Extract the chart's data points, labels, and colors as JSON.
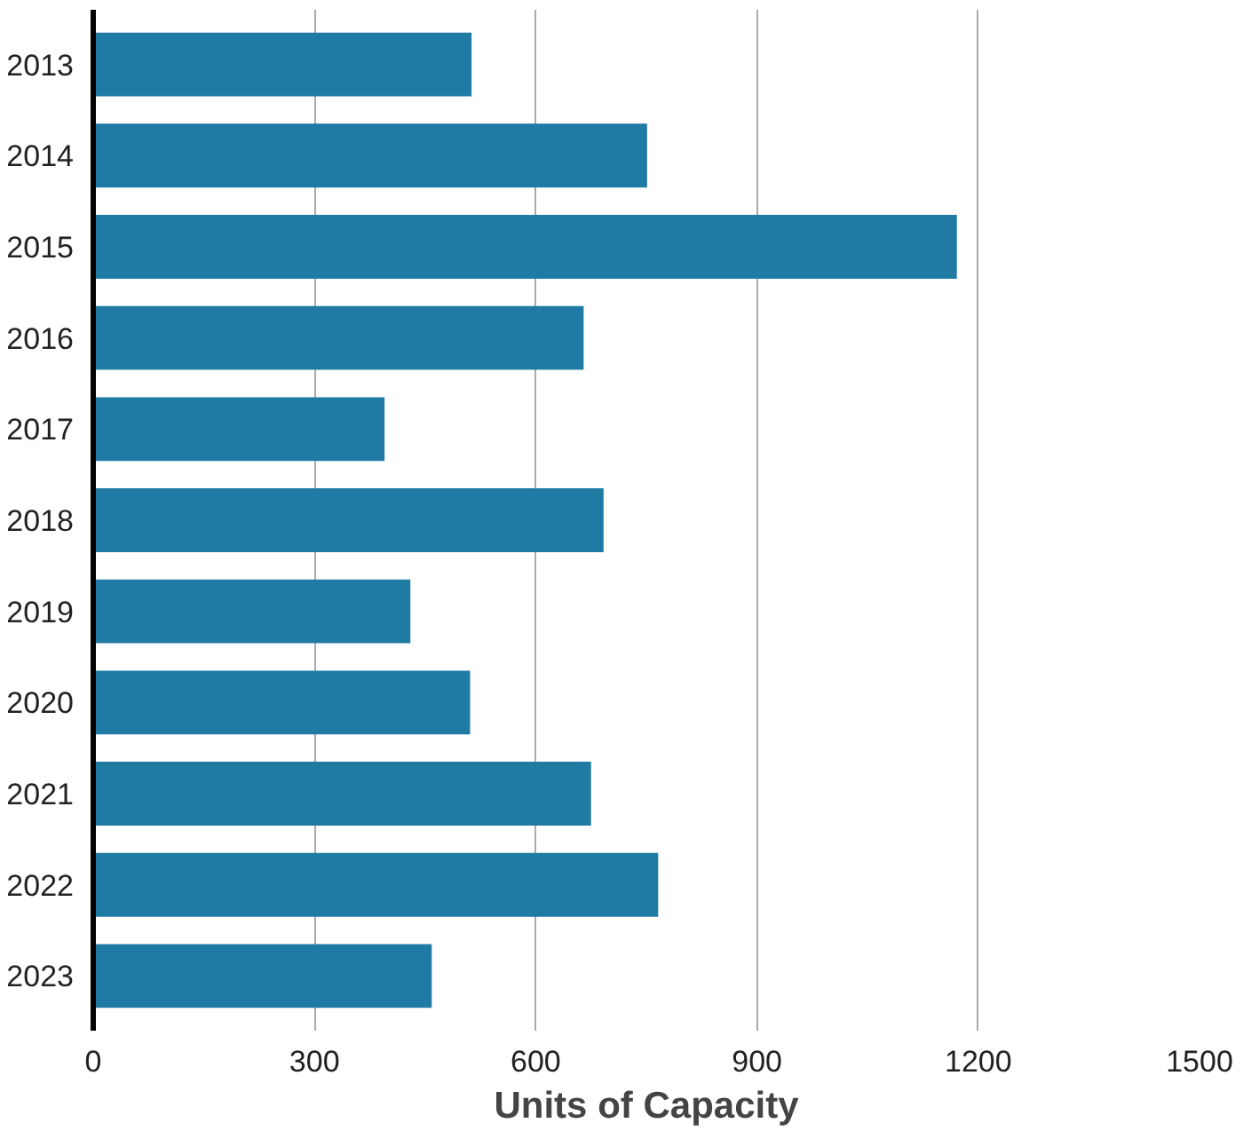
{
  "chart_data": {
    "type": "bar",
    "orientation": "horizontal",
    "xlabel": "Units of Capacity",
    "categories": [
      "2013",
      "2014",
      "2015",
      "2016",
      "2017",
      "2018",
      "2019",
      "2020",
      "2021",
      "2022",
      "2023"
    ],
    "values": [
      513,
      751,
      1171,
      665,
      395,
      692,
      430,
      511,
      675,
      766,
      459
    ],
    "color": "#1f7ba3",
    "xlim": [
      0,
      1500
    ],
    "xticks": [
      0,
      300,
      600,
      900,
      1200,
      1500
    ],
    "grid": "x"
  }
}
